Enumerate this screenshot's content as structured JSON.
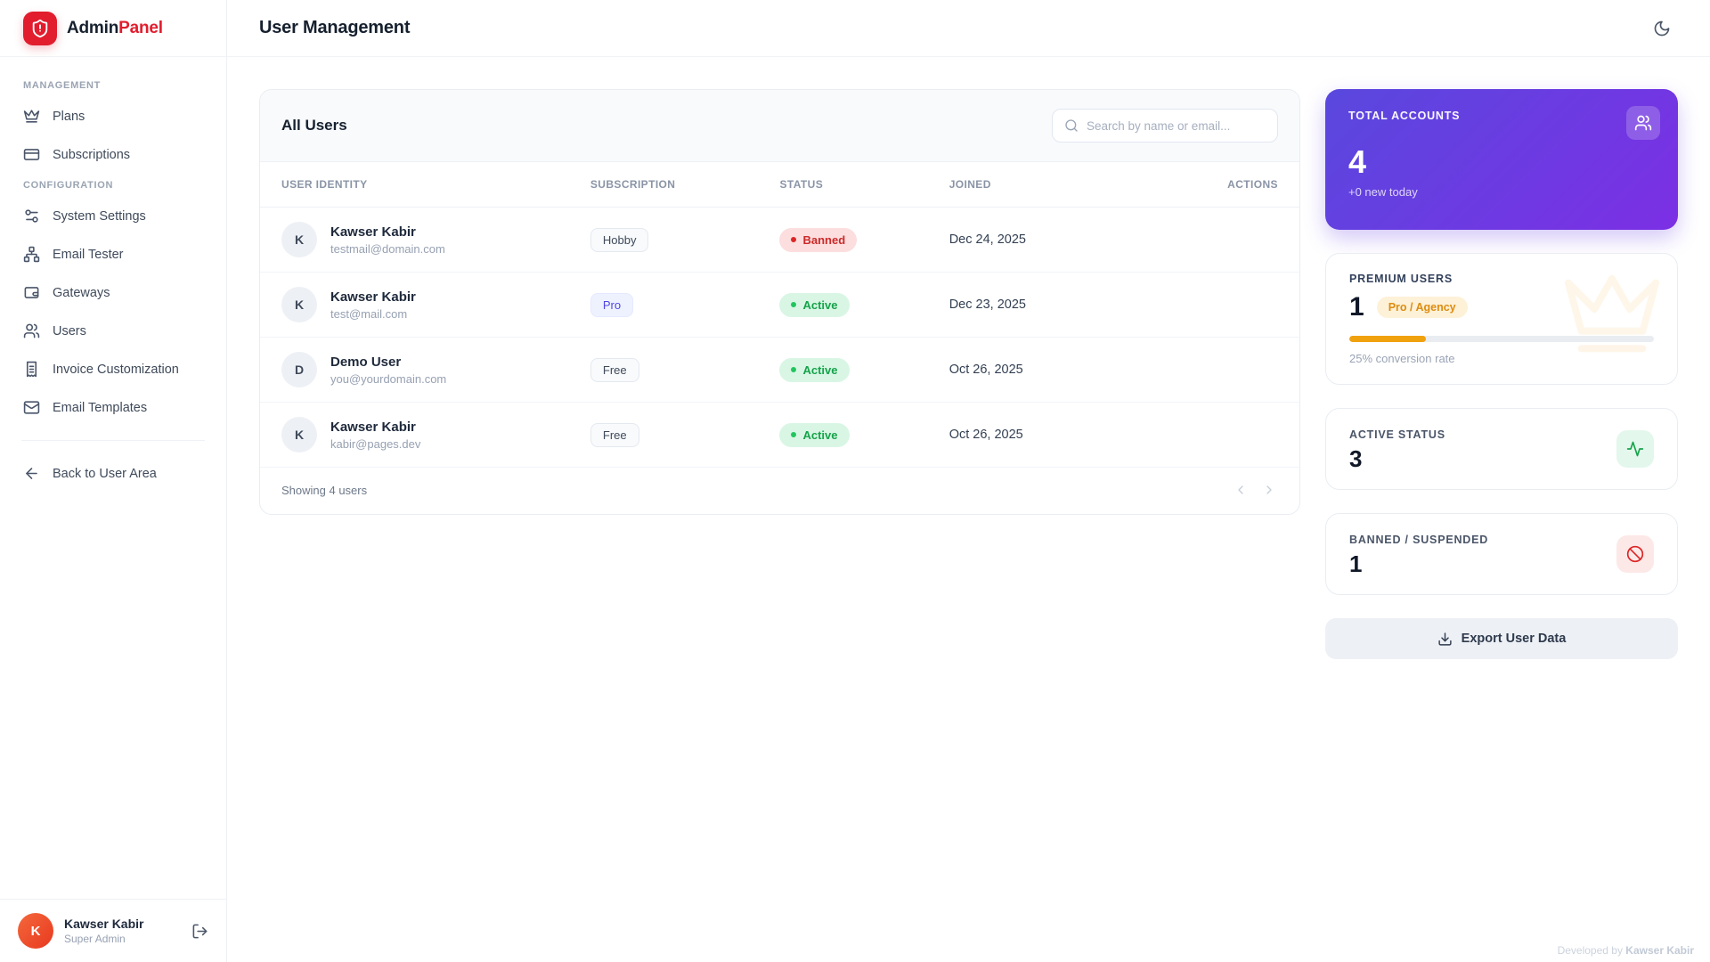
{
  "app": {
    "brand_primary": "Admin",
    "brand_accent": "Panel",
    "logo_icon": "shield-alert-icon"
  },
  "sidebar": {
    "sections": [
      {
        "label": "MANAGEMENT",
        "items": [
          {
            "label": "Plans",
            "icon": "crown-icon"
          },
          {
            "label": "Subscriptions",
            "icon": "credit-card-icon"
          }
        ]
      },
      {
        "label": "CONFIGURATION",
        "items": [
          {
            "label": "System Settings",
            "icon": "sliders-icon"
          },
          {
            "label": "Email Tester",
            "icon": "network-icon"
          },
          {
            "label": "Gateways",
            "icon": "wallet-icon"
          },
          {
            "label": "Users",
            "icon": "users-icon"
          },
          {
            "label": "Invoice Customization",
            "icon": "invoice-icon"
          },
          {
            "label": "Email Templates",
            "icon": "mail-icon"
          }
        ]
      }
    ],
    "back_link": {
      "label": "Back to User Area",
      "icon": "arrow-left-icon"
    },
    "profile": {
      "initial": "K",
      "name": "Kawser Kabir",
      "role": "Super Admin",
      "logout_icon": "logout-icon"
    }
  },
  "header": {
    "title": "User Management",
    "theme_toggle_icon": "moon-icon"
  },
  "table": {
    "title": "All Users",
    "search_placeholder": "Search by name or email...",
    "columns": {
      "identity": "USER IDENTITY",
      "subscription": "SUBSCRIPTION",
      "status": "STATUS",
      "joined": "JOINED",
      "actions": "ACTIONS"
    },
    "rows": [
      {
        "initial": "K",
        "name": "Kawser Kabir",
        "email": "testmail@domain.com",
        "subscription": "Hobby",
        "status": "Banned",
        "joined": "Dec 24, 2025"
      },
      {
        "initial": "K",
        "name": "Kawser Kabir",
        "email": "test@mail.com",
        "subscription": "Pro",
        "status": "Active",
        "joined": "Dec 23, 2025"
      },
      {
        "initial": "D",
        "name": "Demo User",
        "email": "you@yourdomain.com",
        "subscription": "Free",
        "status": "Active",
        "joined": "Oct 26, 2025"
      },
      {
        "initial": "K",
        "name": "Kawser Kabir",
        "email": "kabir@pages.dev",
        "subscription": "Free",
        "status": "Active",
        "joined": "Oct 26, 2025"
      }
    ],
    "footer_summary": "Showing 4 users"
  },
  "stats": {
    "total_accounts": {
      "label": "TOTAL ACCOUNTS",
      "value": "4",
      "subtext": "+0 new today",
      "icon": "users-icon",
      "gradient": [
        "#5948de",
        "#7c2fe4"
      ]
    },
    "premium_users": {
      "label": "PREMIUM USERS",
      "value": "1",
      "badge": "Pro / Agency",
      "progress_percent": 25,
      "subtext": "25% conversion rate",
      "watermark_icon": "crown-icon",
      "accent": "#f0a10e"
    },
    "active_status": {
      "label": "ACTIVE STATUS",
      "value": "3",
      "icon": "activity-icon",
      "accent": "#16a34a"
    },
    "banned_suspended": {
      "label": "BANNED / SUSPENDED",
      "value": "1",
      "icon": "ban-icon",
      "accent": "#dc2626"
    }
  },
  "export_button": {
    "label": "Export User Data",
    "icon": "download-icon"
  },
  "footer_credit": {
    "prefix": "Developed by ",
    "name": "Kawser Kabir"
  }
}
